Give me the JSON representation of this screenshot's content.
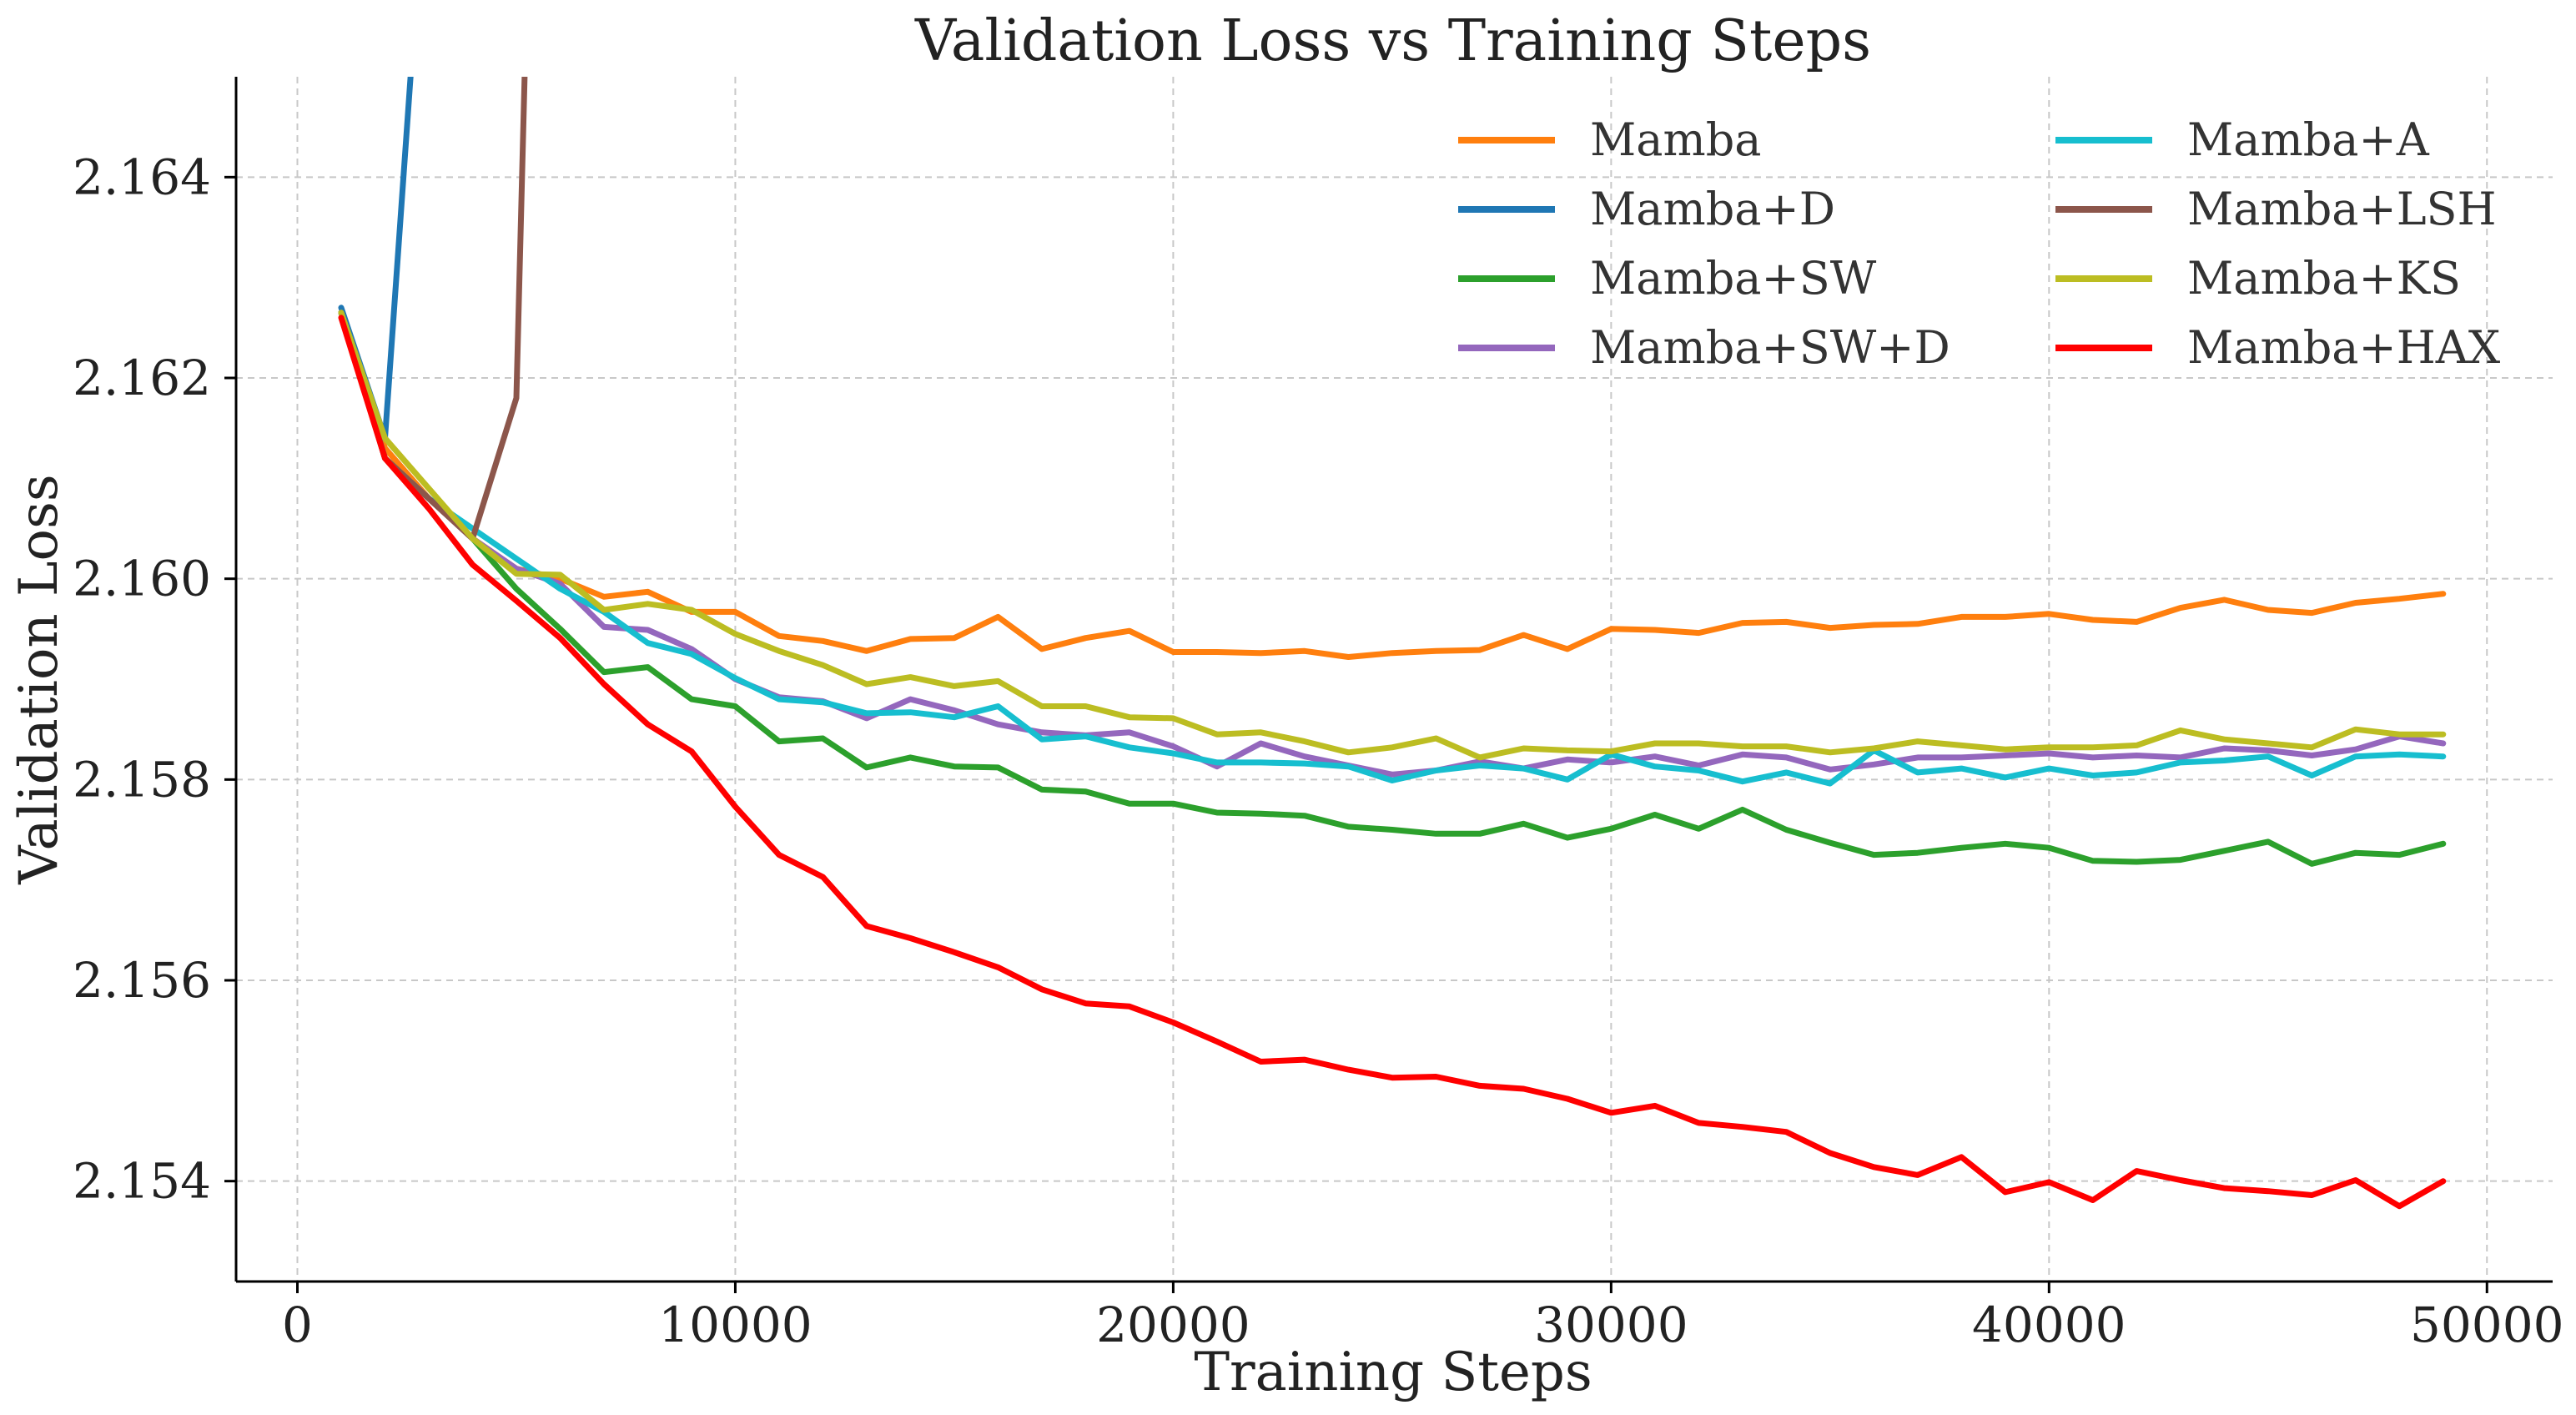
{
  "chart_data": {
    "type": "line",
    "title": "Validation Loss vs Training Steps",
    "xlabel": "Training Steps",
    "ylabel": "Validation Loss",
    "xlim": [
      -1400,
      51500
    ],
    "ylim": [
      2.153,
      2.165
    ],
    "xticks": [
      0,
      10000,
      20000,
      30000,
      40000,
      50000
    ],
    "yticks": [
      2.154,
      2.156,
      2.158,
      2.16,
      2.162,
      2.164
    ],
    "grid": true,
    "legend_position": "top-right",
    "legend_columns": 2,
    "x": [
      1000,
      2000,
      3000,
      4000,
      5000,
      6000,
      7000,
      8000,
      9000,
      10000,
      11000,
      12000,
      13000,
      14000,
      15000,
      16000,
      17000,
      18000,
      19000,
      20000,
      21000,
      22000,
      23000,
      24000,
      25000,
      26000,
      27000,
      28000,
      29000,
      30000,
      31000,
      32000,
      33000,
      34000,
      35000,
      36000,
      37000,
      38000,
      39000,
      40000,
      41000,
      42000,
      43000,
      44000,
      45000,
      46000,
      47000,
      48000,
      49000
    ],
    "series": [
      {
        "name": "Mamba",
        "color": "#ff7f0e",
        "values": [
          2.16265,
          2.1613,
          2.1608,
          2.1604,
          2.1601,
          2.16,
          2.15982,
          2.15987,
          2.15967,
          2.15967,
          2.15943,
          2.15938,
          2.15928,
          2.1594,
          2.15941,
          2.15962,
          2.1593,
          2.15941,
          2.15948,
          2.15927,
          2.15927,
          2.15926,
          2.15928,
          2.15922,
          2.15926,
          2.15928,
          2.15929,
          2.15944,
          2.1593,
          2.1595,
          2.15949,
          2.15946,
          2.15956,
          2.15957,
          2.15951,
          2.15954,
          2.15955,
          2.15962,
          2.15962,
          2.15965,
          2.15959,
          2.15957,
          2.15971,
          2.15979,
          2.15969,
          2.15966,
          2.15976,
          2.1598,
          2.15985
        ]
      },
      {
        "name": "Mamba+D",
        "color": "#1f77b4",
        "x": [
          1000,
          2000,
          2600
        ],
        "values": [
          2.1627,
          2.1614,
          2.1651
        ]
      },
      {
        "name": "Mamba+SW",
        "color": "#2ca02c",
        "values": [
          2.16265,
          2.1612,
          2.1608,
          2.1604,
          2.1599,
          2.1595,
          2.15907,
          2.15912,
          2.1588,
          2.15873,
          2.15838,
          2.15841,
          2.15812,
          2.15822,
          2.15813,
          2.15812,
          2.1579,
          2.15788,
          2.15776,
          2.15776,
          2.15767,
          2.15766,
          2.15764,
          2.15753,
          2.1575,
          2.15746,
          2.15746,
          2.15756,
          2.15742,
          2.15751,
          2.15765,
          2.15751,
          2.1577,
          2.1575,
          2.15737,
          2.15725,
          2.15727,
          2.15732,
          2.15736,
          2.15732,
          2.15719,
          2.15718,
          2.1572,
          2.15729,
          2.15738,
          2.15716,
          2.15727,
          2.15725,
          2.15736
        ]
      },
      {
        "name": "Mamba+SW+D",
        "color": "#9467bd",
        "values": [
          2.16265,
          2.1612,
          2.1608,
          2.1604,
          2.1601,
          2.15995,
          2.15952,
          2.15949,
          2.1593,
          2.159,
          2.15882,
          2.15878,
          2.15861,
          2.1588,
          2.15869,
          2.15855,
          2.15847,
          2.15844,
          2.15847,
          2.15833,
          2.15813,
          2.15836,
          2.15823,
          2.15814,
          2.15805,
          2.15809,
          2.15818,
          2.15811,
          2.1582,
          2.15817,
          2.15823,
          2.15814,
          2.15825,
          2.15822,
          2.1581,
          2.15815,
          2.15822,
          2.15822,
          2.15824,
          2.15826,
          2.15822,
          2.15824,
          2.15822,
          2.15831,
          2.15829,
          2.15824,
          2.1583,
          2.15843,
          2.15836
        ]
      },
      {
        "name": "Mamba+A",
        "color": "#17becf",
        "values": [
          2.16265,
          2.1612,
          2.1608,
          2.1605,
          2.1602,
          2.1599,
          2.15967,
          2.15936,
          2.15925,
          2.15901,
          2.1588,
          2.15877,
          2.15866,
          2.15867,
          2.15862,
          2.15873,
          2.1584,
          2.15843,
          2.15832,
          2.15826,
          2.15817,
          2.15817,
          2.15816,
          2.15813,
          2.15799,
          2.15809,
          2.15814,
          2.15811,
          2.158,
          2.15825,
          2.15813,
          2.15809,
          2.15798,
          2.15807,
          2.15796,
          2.15829,
          2.15807,
          2.15811,
          2.15802,
          2.15811,
          2.15804,
          2.15807,
          2.15817,
          2.15819,
          2.15823,
          2.15804,
          2.15823,
          2.15825,
          2.15823
        ]
      },
      {
        "name": "Mamba+LSH",
        "color": "#8c564b",
        "x": [
          1000,
          2000,
          3000,
          4000,
          5000,
          5200
        ],
        "values": [
          2.16265,
          2.1612,
          2.1608,
          2.1604,
          2.1618,
          2.1652
        ]
      },
      {
        "name": "Mamba+KS",
        "color": "#bcbd22",
        "values": [
          2.16265,
          2.1614,
          2.1609,
          2.1604,
          2.16005,
          2.16004,
          2.15969,
          2.15975,
          2.15969,
          2.15945,
          2.15928,
          2.15914,
          2.15895,
          2.15902,
          2.15893,
          2.15898,
          2.15873,
          2.15873,
          2.15862,
          2.15861,
          2.15845,
          2.15847,
          2.15838,
          2.15827,
          2.15832,
          2.15841,
          2.15822,
          2.15831,
          2.15829,
          2.15828,
          2.15836,
          2.15836,
          2.15833,
          2.15833,
          2.15827,
          2.15831,
          2.15838,
          2.15834,
          2.1583,
          2.15832,
          2.15832,
          2.15834,
          2.15849,
          2.1584,
          2.15836,
          2.15832,
          2.1585,
          2.15845,
          2.15845
        ]
      },
      {
        "name": "Mamba+HAX",
        "color": "#ff0000",
        "values": [
          2.1626,
          2.1612,
          2.1607,
          2.16014,
          2.15978,
          2.15941,
          2.15895,
          2.15855,
          2.15828,
          2.15773,
          2.15725,
          2.15703,
          2.15654,
          2.15642,
          2.15628,
          2.15613,
          2.15591,
          2.15577,
          2.15574,
          2.15558,
          2.15539,
          2.15519,
          2.15521,
          2.15511,
          2.15503,
          2.15504,
          2.15495,
          2.15492,
          2.15482,
          2.15468,
          2.15475,
          2.15458,
          2.15454,
          2.15449,
          2.15428,
          2.15414,
          2.15406,
          2.15424,
          2.15389,
          2.15399,
          2.15381,
          2.1541,
          2.15401,
          2.15393,
          2.1539,
          2.15386,
          2.15401,
          2.15375,
          2.154
        ]
      }
    ]
  }
}
